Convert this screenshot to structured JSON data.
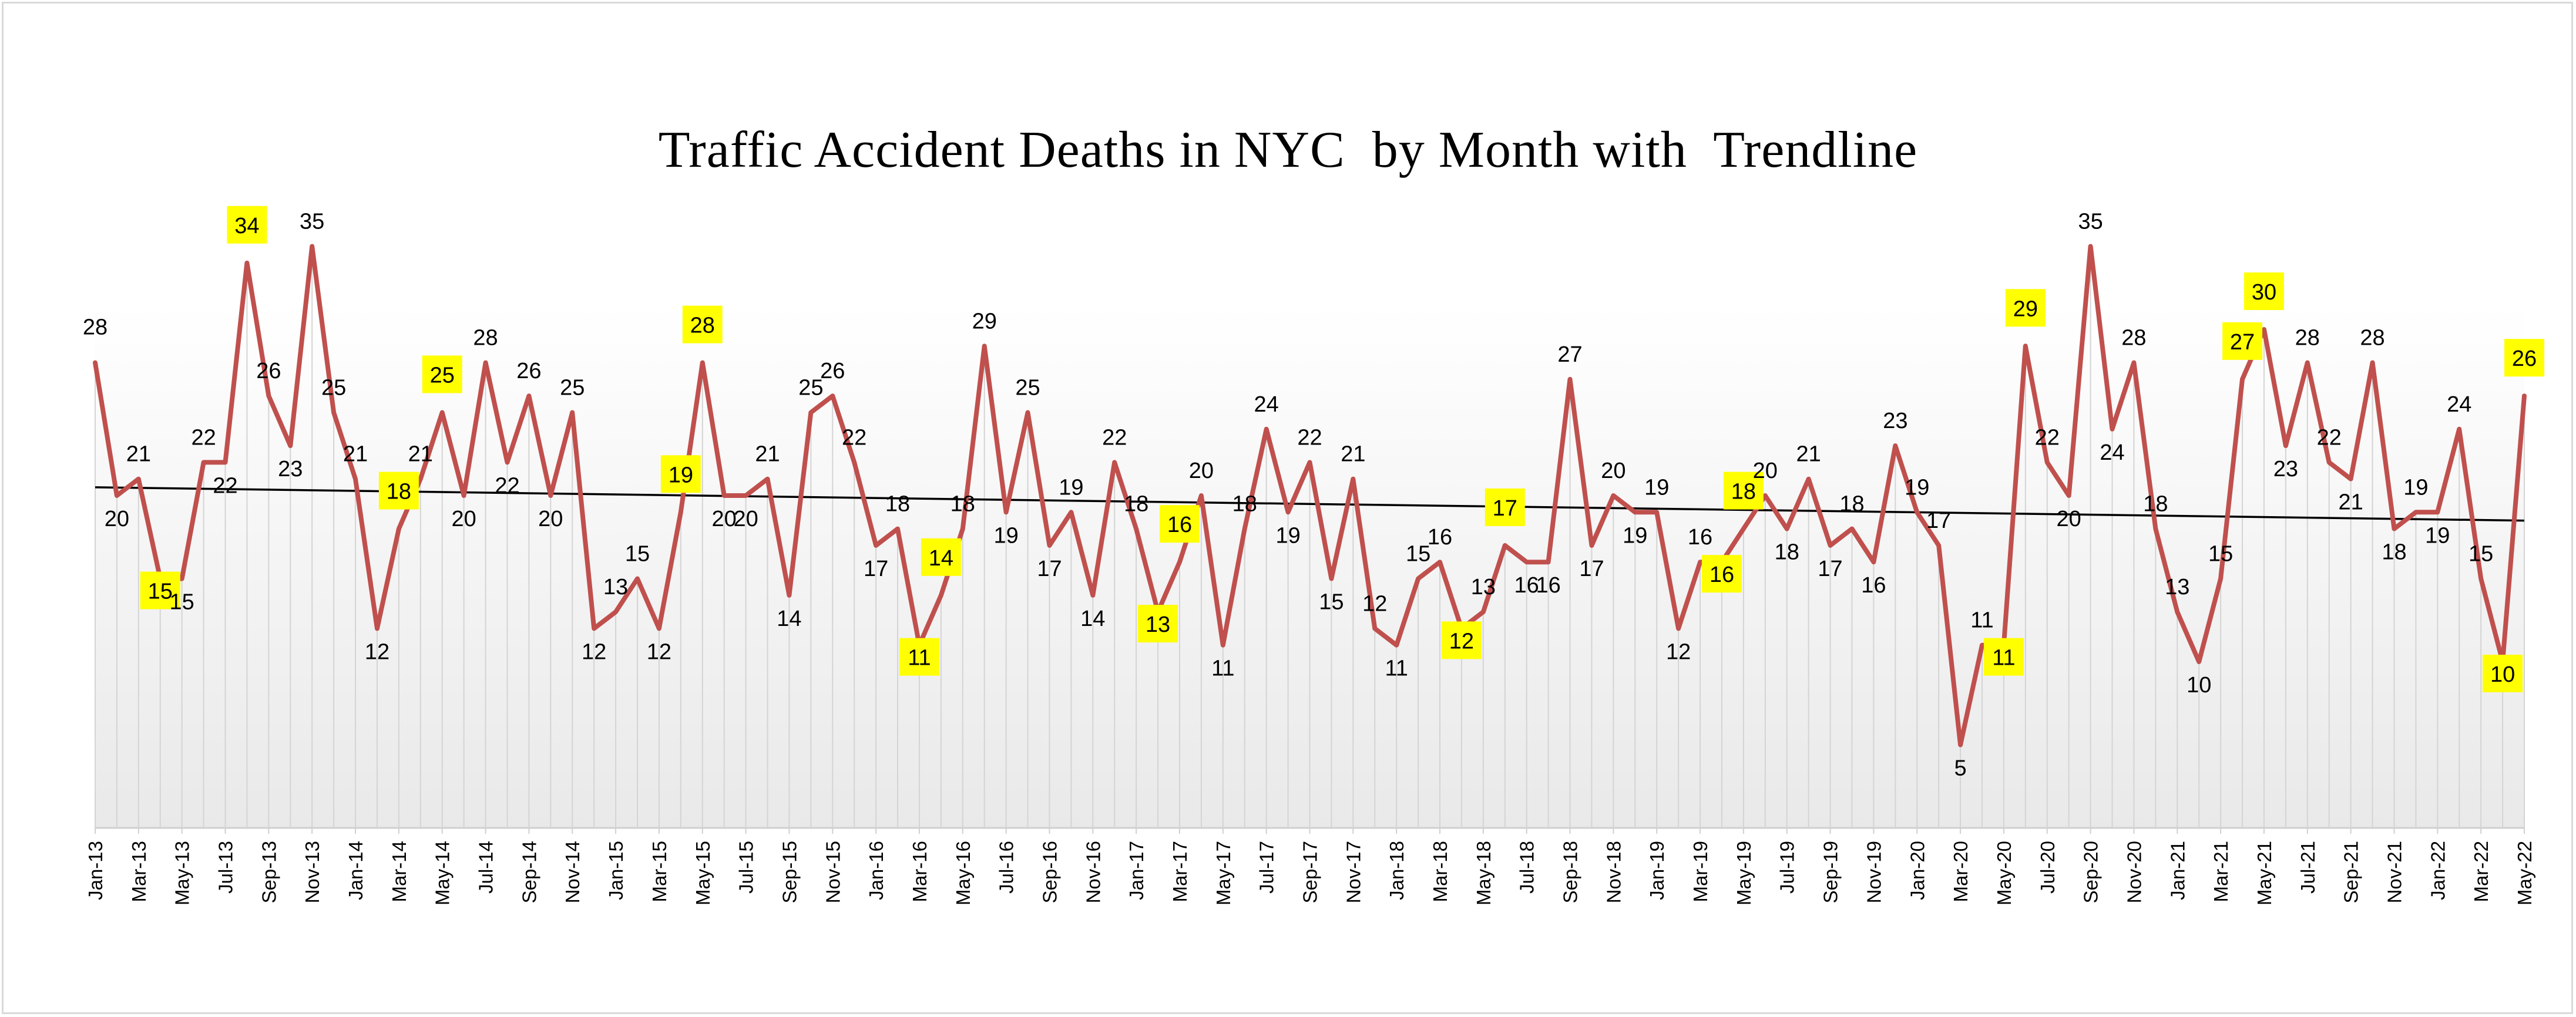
{
  "chart_data": {
    "type": "line",
    "title": "Traffic Accident Deaths in NYC  by Month with  Trendline",
    "xlabel": "",
    "ylabel": "",
    "ylim": [
      0,
      36
    ],
    "grid": "vertical lines at each month",
    "legend": "none",
    "x": [
      "Jan-13",
      "Feb-13",
      "Mar-13",
      "Apr-13",
      "May-13",
      "Jun-13",
      "Jul-13",
      "Aug-13",
      "Sep-13",
      "Oct-13",
      "Nov-13",
      "Dec-13",
      "Jan-14",
      "Feb-14",
      "Mar-14",
      "Apr-14",
      "May-14",
      "Jun-14",
      "Jul-14",
      "Aug-14",
      "Sep-14",
      "Oct-14",
      "Nov-14",
      "Dec-14",
      "Jan-15",
      "Feb-15",
      "Mar-15",
      "Apr-15",
      "May-15",
      "Jun-15",
      "Jul-15",
      "Aug-15",
      "Sep-15",
      "Oct-15",
      "Nov-15",
      "Dec-15",
      "Jan-16",
      "Feb-16",
      "Mar-16",
      "Apr-16",
      "May-16",
      "Jun-16",
      "Jul-16",
      "Aug-16",
      "Sep-16",
      "Oct-16",
      "Nov-16",
      "Dec-16",
      "Jan-17",
      "Feb-17",
      "Mar-17",
      "Apr-17",
      "May-17",
      "Jun-17",
      "Jul-17",
      "Aug-17",
      "Sep-17",
      "Oct-17",
      "Nov-17",
      "Dec-17",
      "Jan-18",
      "Feb-18",
      "Mar-18",
      "Apr-18",
      "May-18",
      "Jun-18",
      "Jul-18",
      "Aug-18",
      "Sep-18",
      "Oct-18",
      "Nov-18",
      "Dec-18",
      "Jan-19",
      "Feb-19",
      "Mar-19",
      "Apr-19",
      "May-19",
      "Jun-19",
      "Jul-19",
      "Aug-19",
      "Sep-19",
      "Oct-19",
      "Nov-19",
      "Dec-19",
      "Jan-20",
      "Feb-20",
      "Mar-20",
      "Apr-20",
      "May-20",
      "Jun-20",
      "Jul-20",
      "Aug-20",
      "Sep-20",
      "Oct-20",
      "Nov-20",
      "Dec-20",
      "Jan-21",
      "Feb-21",
      "Mar-21",
      "Apr-21",
      "May-21",
      "Jun-21",
      "Jul-21",
      "Aug-21",
      "Sep-21",
      "Oct-21",
      "Nov-21",
      "Dec-21",
      "Jan-22",
      "Feb-22",
      "Mar-22",
      "Apr-22",
      "May-22"
    ],
    "tick_labels": [
      "Jan-13",
      "Mar-13",
      "May-13",
      "Jul-13",
      "Sep-13",
      "Nov-13",
      "Jan-14",
      "Mar-14",
      "May-14",
      "Jul-14",
      "Sep-14",
      "Nov-14",
      "Jan-15",
      "Mar-15",
      "May-15",
      "Jul-15",
      "Sep-15",
      "Nov-15",
      "Jan-16",
      "Mar-16",
      "May-16",
      "Jul-16",
      "Sep-16",
      "Nov-16",
      "Jan-17",
      "Mar-17",
      "May-17",
      "Jul-17",
      "Sep-17",
      "Nov-17",
      "Jan-18",
      "Mar-18",
      "May-18",
      "Jul-18",
      "Sep-18",
      "Nov-18",
      "Jan-19",
      "Mar-19",
      "May-19",
      "Jul-19",
      "Sep-19",
      "Nov-19",
      "Jan-20",
      "Mar-20",
      "May-20",
      "Jul-20",
      "Sep-20",
      "Nov-20",
      "Jan-21",
      "Mar-21",
      "May-21",
      "Jul-21",
      "Sep-21",
      "Nov-21",
      "Jan-22",
      "Mar-22",
      "May-22"
    ],
    "series": [
      {
        "color": "#c0504d",
        "values": [
          28,
          20,
          21,
          15,
          15,
          22,
          22,
          34,
          26,
          23,
          35,
          25,
          21,
          12,
          18,
          21,
          25,
          20,
          28,
          22,
          26,
          20,
          25,
          12,
          13,
          15,
          12,
          19,
          28,
          20,
          20,
          21,
          14,
          25,
          26,
          22,
          17,
          18,
          11,
          14,
          18,
          29,
          19,
          25,
          17,
          19,
          14,
          22,
          18,
          13,
          16,
          20,
          11,
          18,
          24,
          19,
          22,
          15,
          21,
          12,
          11,
          15,
          16,
          12,
          13,
          17,
          16,
          16,
          27,
          17,
          20,
          19,
          19,
          12,
          16,
          16,
          18,
          20,
          18,
          21,
          17,
          18,
          16,
          23,
          19,
          17,
          5,
          11,
          11,
          29,
          22,
          20,
          35,
          24,
          28,
          18,
          13,
          10,
          15,
          27,
          30,
          23,
          28,
          22,
          21,
          28,
          18,
          19,
          19,
          24,
          15,
          10,
          26
        ]
      }
    ],
    "highlighted_labels": {
      "color": "#ffff00",
      "months": [
        "Apr-13",
        "Aug-13",
        "Mar-14",
        "May-14",
        "Apr-15",
        "May-15",
        "Mar-16",
        "Apr-16",
        "Feb-17",
        "Mar-17",
        "Apr-18",
        "Jun-18",
        "Apr-19",
        "May-19",
        "May-20",
        "Jun-20",
        "Apr-21",
        "May-21",
        "Apr-22",
        "May-22"
      ]
    },
    "trendline": {
      "type": "linear",
      "color": "#000000"
    }
  }
}
